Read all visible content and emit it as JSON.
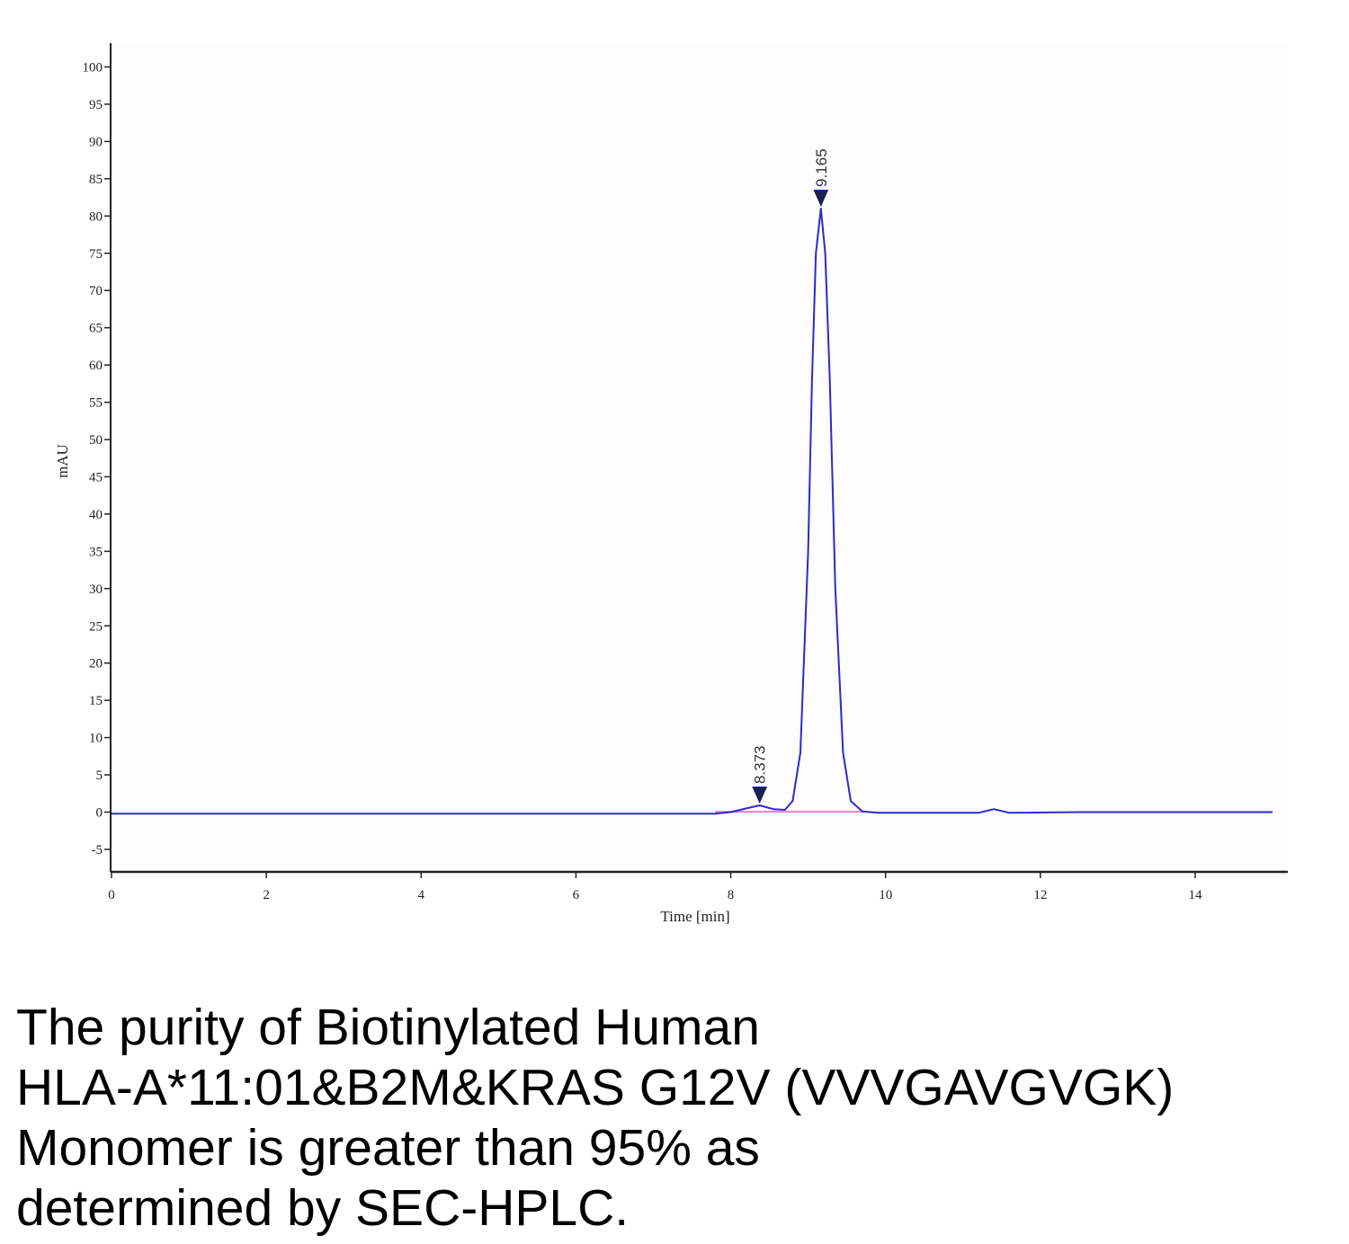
{
  "chart_data": {
    "type": "line",
    "title": "",
    "xlabel": "Time [min]",
    "ylabel": "mAU",
    "xlim": [
      0,
      15
    ],
    "ylim": [
      -8,
      102
    ],
    "x_ticks": [
      0,
      2,
      4,
      6,
      8,
      10,
      12,
      14
    ],
    "y_ticks": [
      -5,
      0,
      5,
      10,
      15,
      20,
      25,
      30,
      35,
      40,
      45,
      50,
      55,
      60,
      65,
      70,
      75,
      80,
      85,
      90,
      95,
      100
    ],
    "grid": false,
    "legend": "none",
    "colors": {
      "trace": "#2a2acc",
      "baseline": "#e060c0",
      "axis": "#222222",
      "marker": "#1a2050",
      "marker_accent": "#2233cc"
    },
    "series": [
      {
        "x": [
          0,
          7.8,
          8.0,
          8.2,
          8.373,
          8.55,
          8.7,
          8.8,
          8.9,
          9.0,
          9.05,
          9.1,
          9.165,
          9.22,
          9.28,
          9.35,
          9.45,
          9.55,
          9.7,
          9.9,
          11.2,
          11.4,
          11.6,
          12.5,
          15.0
        ],
        "y": [
          -0.2,
          -0.2,
          0.0,
          0.5,
          0.9,
          0.4,
          0.3,
          1.5,
          8.0,
          35.0,
          58.0,
          75.0,
          81.0,
          75.0,
          58.0,
          30.0,
          8.0,
          1.5,
          0.1,
          -0.1,
          -0.1,
          0.4,
          -0.1,
          0.0,
          0.0
        ]
      }
    ],
    "peaks": [
      {
        "label": "8.373",
        "time": 8.373,
        "height": 0.9
      },
      {
        "label": "9.165",
        "time": 9.165,
        "height": 81.0
      }
    ]
  },
  "caption": {
    "lines": [
      "The purity of Biotinylated Human",
      "HLA-A*11:01&B2M&KRAS G12V (VVVGAVGVGK)",
      "Monomer is greater than 95% as",
      "determined by SEC-HPLC."
    ]
  }
}
